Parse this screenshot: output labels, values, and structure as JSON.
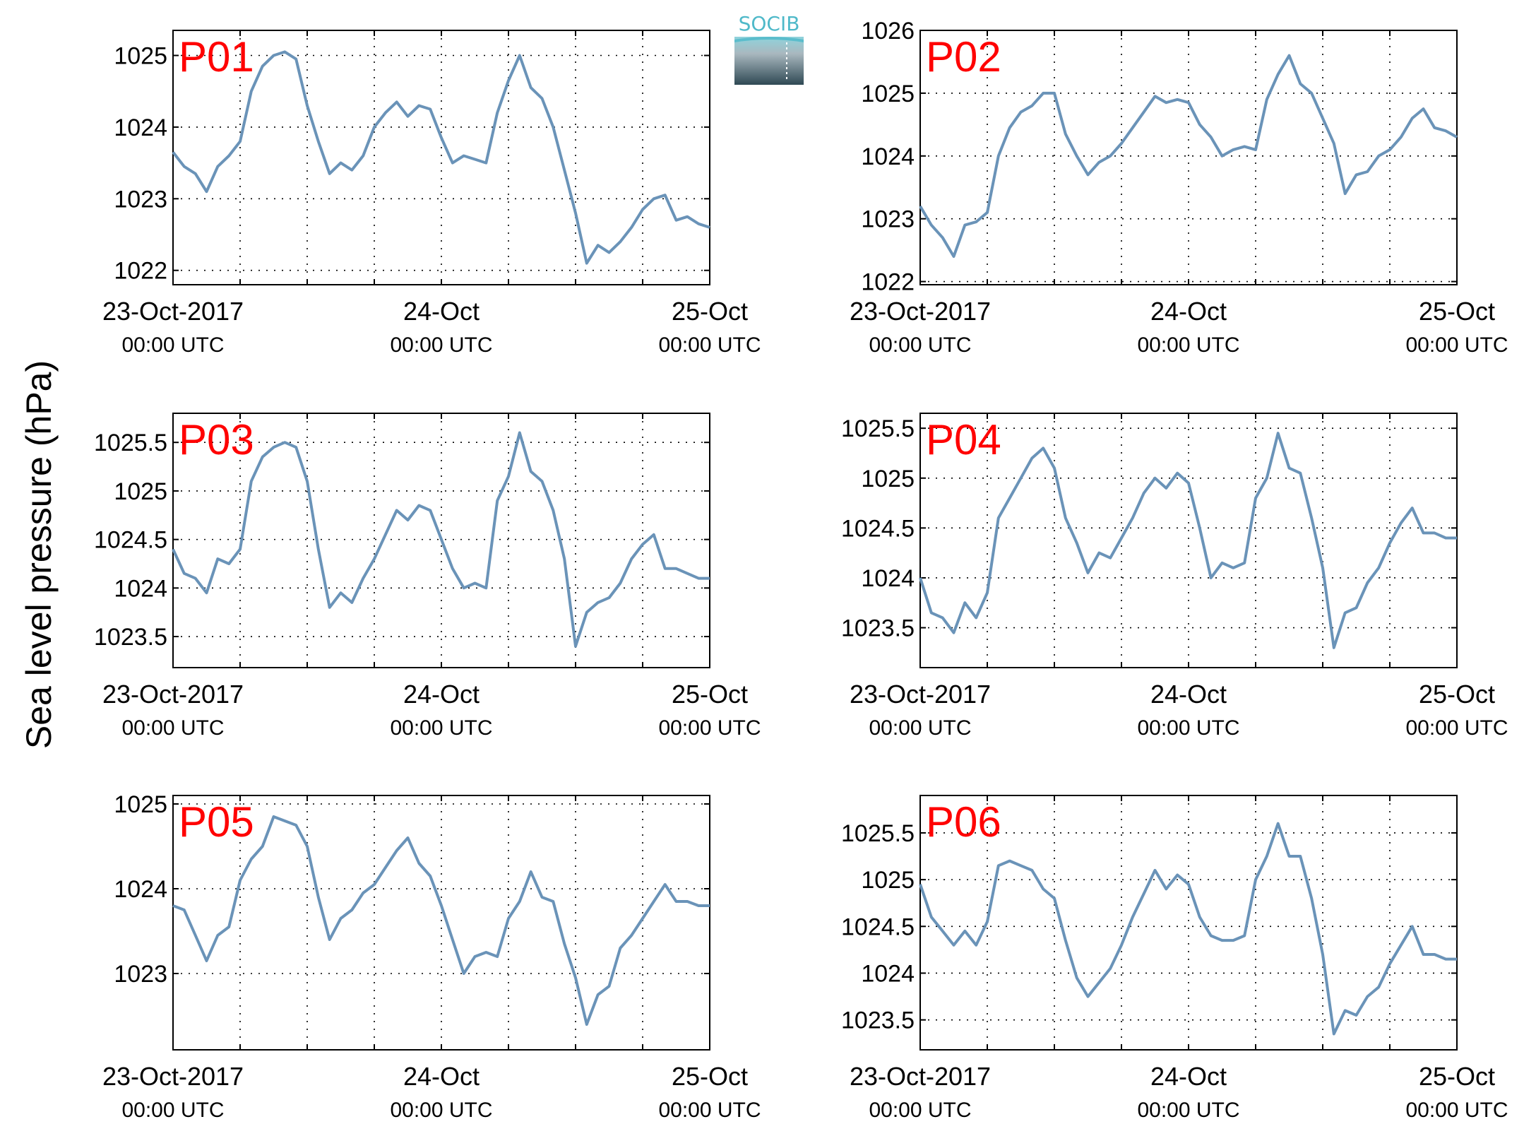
{
  "figure": {
    "ylabel": "Sea level pressure (hPa)",
    "logo_text": "SOCIB",
    "colors": {
      "line": "#6a93b8",
      "panel_label": "#ff0000",
      "grid": "#000000"
    },
    "x_ticks": [
      {
        "t": 0,
        "date": "23-Oct-2017",
        "time": "00:00 UTC"
      },
      {
        "t": 24,
        "date": "24-Oct",
        "time": "00:00 UTC"
      },
      {
        "t": 48,
        "date": "25-Oct",
        "time": "00:00 UTC"
      }
    ]
  },
  "chart_data": [
    {
      "type": "line",
      "title": "P01",
      "ylim": [
        1021.8,
        1025.35
      ],
      "yticks": [
        1022,
        1023,
        1024,
        1025
      ],
      "xlim": [
        0,
        48
      ],
      "grid": true,
      "x_unit": "hours since 23-Oct-2017 00:00 UTC",
      "x": [
        0,
        1,
        2,
        3,
        4,
        5,
        6,
        7,
        8,
        9,
        10,
        11,
        12,
        13,
        14,
        15,
        16,
        17,
        18,
        19,
        20,
        21,
        22,
        23,
        24,
        25,
        26,
        27,
        28,
        29,
        30,
        31,
        32,
        33,
        34,
        35,
        36,
        37,
        38,
        39,
        40,
        41,
        42,
        43,
        44,
        45,
        46,
        47,
        48
      ],
      "series": [
        {
          "values": [
            1023.65,
            1023.45,
            1023.35,
            1023.1,
            1023.45,
            1023.6,
            1023.8,
            1024.5,
            1024.85,
            1025.0,
            1025.05,
            1024.95,
            1024.3,
            1023.8,
            1023.35,
            1023.5,
            1023.4,
            1023.6,
            1024.0,
            1024.2,
            1024.35,
            1024.15,
            1024.3,
            1024.25,
            1023.85,
            1023.5,
            1023.6,
            1023.55,
            1023.5,
            1024.2,
            1024.65,
            1025.0,
            1024.55,
            1024.4,
            1024.0,
            1023.4,
            1022.8,
            1022.1,
            1022.35,
            1022.25,
            1022.4,
            1022.6,
            1022.85,
            1023.0,
            1023.05,
            1022.7,
            1022.75,
            1022.65,
            1022.6
          ]
        }
      ]
    },
    {
      "type": "line",
      "title": "P02",
      "ylim": [
        1021.95,
        1026.0
      ],
      "yticks": [
        1022,
        1023,
        1024,
        1025,
        1026
      ],
      "xlim": [
        0,
        48
      ],
      "grid": true,
      "x_unit": "hours since 23-Oct-2017 00:00 UTC",
      "x": [
        0,
        1,
        2,
        3,
        4,
        5,
        6,
        7,
        8,
        9,
        10,
        11,
        12,
        13,
        14,
        15,
        16,
        17,
        18,
        19,
        20,
        21,
        22,
        23,
        24,
        25,
        26,
        27,
        28,
        29,
        30,
        31,
        32,
        33,
        34,
        35,
        36,
        37,
        38,
        39,
        40,
        41,
        42,
        43,
        44,
        45,
        46,
        47,
        48
      ],
      "series": [
        {
          "values": [
            1023.2,
            1022.9,
            1022.7,
            1022.4,
            1022.9,
            1022.95,
            1023.1,
            1024.0,
            1024.45,
            1024.7,
            1024.8,
            1025.0,
            1025.0,
            1024.35,
            1024.0,
            1023.7,
            1023.9,
            1024.0,
            1024.2,
            1024.45,
            1024.7,
            1024.95,
            1024.85,
            1024.9,
            1024.85,
            1024.5,
            1024.3,
            1024.0,
            1024.1,
            1024.15,
            1024.1,
            1024.9,
            1025.3,
            1025.6,
            1025.15,
            1025.0,
            1024.6,
            1024.2,
            1023.4,
            1023.7,
            1023.75,
            1024.0,
            1024.1,
            1024.3,
            1024.6,
            1024.75,
            1024.45,
            1024.4,
            1024.3
          ]
        }
      ]
    },
    {
      "type": "line",
      "title": "P03",
      "ylim": [
        1023.18,
        1025.8
      ],
      "yticks": [
        1023.5,
        1024,
        1024.5,
        1025,
        1025.5
      ],
      "xlim": [
        0,
        48
      ],
      "grid": true,
      "x_unit": "hours since 23-Oct-2017 00:00 UTC",
      "x": [
        0,
        1,
        2,
        3,
        4,
        5,
        6,
        7,
        8,
        9,
        10,
        11,
        12,
        13,
        14,
        15,
        16,
        17,
        18,
        19,
        20,
        21,
        22,
        23,
        24,
        25,
        26,
        27,
        28,
        29,
        30,
        31,
        32,
        33,
        34,
        35,
        36,
        37,
        38,
        39,
        40,
        41,
        42,
        43,
        44,
        45,
        46,
        47,
        48
      ],
      "series": [
        {
          "values": [
            1024.4,
            1024.15,
            1024.1,
            1023.95,
            1024.3,
            1024.25,
            1024.4,
            1025.1,
            1025.35,
            1025.45,
            1025.5,
            1025.45,
            1025.1,
            1024.4,
            1023.8,
            1023.95,
            1023.85,
            1024.1,
            1024.3,
            1024.55,
            1024.8,
            1024.7,
            1024.85,
            1024.8,
            1024.5,
            1024.2,
            1024.0,
            1024.05,
            1024.0,
            1024.9,
            1025.15,
            1025.6,
            1025.2,
            1025.1,
            1024.8,
            1024.3,
            1023.4,
            1023.75,
            1023.85,
            1023.9,
            1024.05,
            1024.3,
            1024.45,
            1024.55,
            1024.2,
            1024.2,
            1024.15,
            1024.1,
            1024.1
          ]
        }
      ]
    },
    {
      "type": "line",
      "title": "P04",
      "ylim": [
        1023.1,
        1025.65
      ],
      "yticks": [
        1023.5,
        1024,
        1024.5,
        1025,
        1025.5
      ],
      "xlim": [
        0,
        48
      ],
      "grid": true,
      "x_unit": "hours since 23-Oct-2017 00:00 UTC",
      "x": [
        0,
        1,
        2,
        3,
        4,
        5,
        6,
        7,
        8,
        9,
        10,
        11,
        12,
        13,
        14,
        15,
        16,
        17,
        18,
        19,
        20,
        21,
        22,
        23,
        24,
        25,
        26,
        27,
        28,
        29,
        30,
        31,
        32,
        33,
        34,
        35,
        36,
        37,
        38,
        39,
        40,
        41,
        42,
        43,
        44,
        45,
        46,
        47,
        48
      ],
      "series": [
        {
          "values": [
            1024.0,
            1023.65,
            1023.6,
            1023.45,
            1023.75,
            1023.6,
            1023.85,
            1024.6,
            1024.8,
            1025.0,
            1025.2,
            1025.3,
            1025.1,
            1024.6,
            1024.35,
            1024.05,
            1024.25,
            1024.2,
            1024.4,
            1024.6,
            1024.85,
            1025.0,
            1024.9,
            1025.05,
            1024.95,
            1024.5,
            1024.0,
            1024.15,
            1024.1,
            1024.15,
            1024.8,
            1025.0,
            1025.45,
            1025.1,
            1025.05,
            1024.6,
            1024.1,
            1023.3,
            1023.65,
            1023.7,
            1023.95,
            1024.1,
            1024.35,
            1024.55,
            1024.7,
            1024.45,
            1024.45,
            1024.4,
            1024.4
          ]
        }
      ]
    },
    {
      "type": "line",
      "title": "P05",
      "ylim": [
        1022.1,
        1025.1
      ],
      "yticks": [
        1023,
        1024,
        1025
      ],
      "xlim": [
        0,
        48
      ],
      "grid": true,
      "x_unit": "hours since 23-Oct-2017 00:00 UTC",
      "x": [
        0,
        1,
        2,
        3,
        4,
        5,
        6,
        7,
        8,
        9,
        10,
        11,
        12,
        13,
        14,
        15,
        16,
        17,
        18,
        19,
        20,
        21,
        22,
        23,
        24,
        25,
        26,
        27,
        28,
        29,
        30,
        31,
        32,
        33,
        34,
        35,
        36,
        37,
        38,
        39,
        40,
        41,
        42,
        43,
        44,
        45,
        46,
        47,
        48
      ],
      "series": [
        {
          "values": [
            1023.8,
            1023.75,
            1023.45,
            1023.15,
            1023.45,
            1023.55,
            1024.1,
            1024.35,
            1024.5,
            1024.85,
            1024.8,
            1024.75,
            1024.5,
            1023.9,
            1023.4,
            1023.65,
            1023.75,
            1023.95,
            1024.05,
            1024.25,
            1024.45,
            1024.6,
            1024.3,
            1024.15,
            1023.8,
            1023.4,
            1023.0,
            1023.2,
            1023.25,
            1023.2,
            1023.65,
            1023.85,
            1024.2,
            1023.9,
            1023.85,
            1023.35,
            1022.95,
            1022.4,
            1022.75,
            1022.85,
            1023.3,
            1023.45,
            1023.65,
            1023.85,
            1024.05,
            1023.85,
            1023.85,
            1023.8,
            1023.8
          ]
        }
      ]
    },
    {
      "type": "line",
      "title": "P06",
      "ylim": [
        1023.18,
        1025.9
      ],
      "yticks": [
        1023.5,
        1024,
        1024.5,
        1025,
        1025.5
      ],
      "xlim": [
        0,
        48
      ],
      "grid": true,
      "x_unit": "hours since 23-Oct-2017 00:00 UTC",
      "x": [
        0,
        1,
        2,
        3,
        4,
        5,
        6,
        7,
        8,
        9,
        10,
        11,
        12,
        13,
        14,
        15,
        16,
        17,
        18,
        19,
        20,
        21,
        22,
        23,
        24,
        25,
        26,
        27,
        28,
        29,
        30,
        31,
        32,
        33,
        34,
        35,
        36,
        37,
        38,
        39,
        40,
        41,
        42,
        43,
        44,
        45,
        46,
        47,
        48
      ],
      "series": [
        {
          "values": [
            1024.95,
            1024.6,
            1024.45,
            1024.3,
            1024.45,
            1024.3,
            1024.55,
            1025.15,
            1025.2,
            1025.15,
            1025.1,
            1024.9,
            1024.8,
            1024.35,
            1023.95,
            1023.75,
            1023.9,
            1024.05,
            1024.3,
            1024.6,
            1024.85,
            1025.1,
            1024.9,
            1025.05,
            1024.95,
            1024.6,
            1024.4,
            1024.35,
            1024.35,
            1024.4,
            1025.0,
            1025.25,
            1025.6,
            1025.25,
            1025.25,
            1024.8,
            1024.2,
            1023.35,
            1023.6,
            1023.55,
            1023.75,
            1023.85,
            1024.1,
            1024.3,
            1024.5,
            1024.2,
            1024.2,
            1024.15,
            1024.15
          ]
        }
      ]
    }
  ]
}
